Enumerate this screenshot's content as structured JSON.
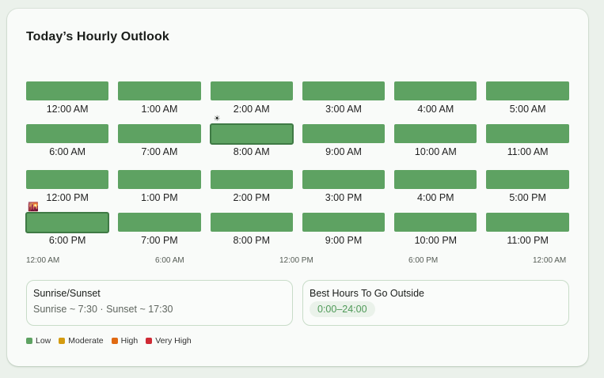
{
  "title": "Today’s Hourly Outlook",
  "colors": {
    "low": "#5ea262",
    "moderate": "#d49b10",
    "high": "#e06a12",
    "very_high": "#cf2a34"
  },
  "hours": [
    {
      "label": "12:00 AM",
      "level": "low"
    },
    {
      "label": "1:00 AM",
      "level": "low"
    },
    {
      "label": "2:00 AM",
      "level": "low"
    },
    {
      "label": "3:00 AM",
      "level": "low"
    },
    {
      "label": "4:00 AM",
      "level": "low"
    },
    {
      "label": "5:00 AM",
      "level": "low"
    },
    {
      "label": "6:00 AM",
      "level": "low"
    },
    {
      "label": "7:00 AM",
      "level": "low"
    },
    {
      "label": "8:00 AM",
      "level": "low",
      "selected": true,
      "marker": "sunrise",
      "marker_glyph": "☀"
    },
    {
      "label": "9:00 AM",
      "level": "low"
    },
    {
      "label": "10:00 AM",
      "level": "low"
    },
    {
      "label": "11:00 AM",
      "level": "low"
    },
    {
      "label": "12:00 PM",
      "level": "low"
    },
    {
      "label": "1:00 PM",
      "level": "low"
    },
    {
      "label": "2:00 PM",
      "level": "low"
    },
    {
      "label": "3:00 PM",
      "level": "low"
    },
    {
      "label": "4:00 PM",
      "level": "low"
    },
    {
      "label": "5:00 PM",
      "level": "low"
    },
    {
      "label": "6:00 PM",
      "level": "low",
      "selected": true,
      "marker": "sunset",
      "marker_glyph": "🌇"
    },
    {
      "label": "7:00 PM",
      "level": "low"
    },
    {
      "label": "8:00 PM",
      "level": "low"
    },
    {
      "label": "9:00 PM",
      "level": "low"
    },
    {
      "label": "10:00 PM",
      "level": "low"
    },
    {
      "label": "11:00 PM",
      "level": "low"
    }
  ],
  "axis": {
    "ticks": [
      "12:00 AM",
      "6:00 AM",
      "12:00 PM",
      "6:00 PM",
      "12:00 AM"
    ]
  },
  "sun_panel": {
    "title": "Sunrise/Sunset",
    "body": "Sunrise ~ 7:30 · Sunset ~ 17:30"
  },
  "best_panel": {
    "title": "Best Hours To Go Outside",
    "range": "0:00–24:00"
  },
  "legend": [
    {
      "label": "Low",
      "key": "low"
    },
    {
      "label": "Moderate",
      "key": "moderate"
    },
    {
      "label": "High",
      "key": "high"
    },
    {
      "label": "Very High",
      "key": "very_high"
    }
  ]
}
